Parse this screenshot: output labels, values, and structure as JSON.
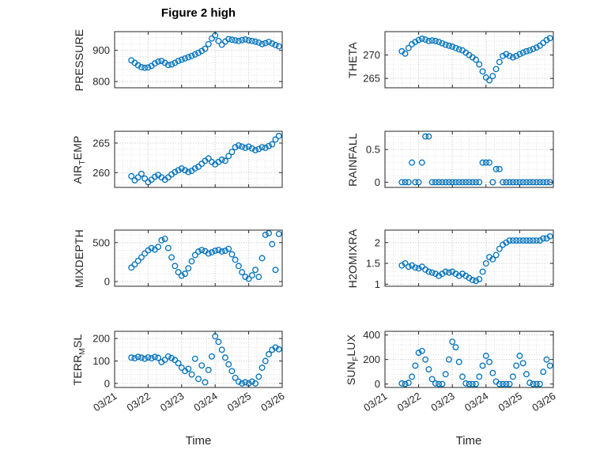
{
  "title": "Figure 2 high",
  "xlabel": "Time",
  "colors": {
    "accent": "#0072BD",
    "axis": "#262626",
    "grid_major": "#c8c8c8",
    "grid_minor": "#e0e0e0"
  },
  "x_axis": {
    "label": "Time",
    "lim": [
      0,
      5
    ],
    "ticks": [
      0,
      1,
      2,
      3,
      4,
      5
    ],
    "minor_step": 0.25,
    "tick_labels": [
      "03/21",
      "03/22",
      "03/23",
      "03/24",
      "03/25",
      "03/26"
    ]
  },
  "x": [
    0.5,
    0.6,
    0.7,
    0.8,
    0.9,
    1.0,
    1.1,
    1.2,
    1.3,
    1.4,
    1.5,
    1.6,
    1.7,
    1.8,
    1.9,
    2.0,
    2.1,
    2.2,
    2.3,
    2.4,
    2.5,
    2.6,
    2.7,
    2.8,
    2.9,
    3.0,
    3.1,
    3.2,
    3.3,
    3.4,
    3.5,
    3.6,
    3.7,
    3.8,
    3.9,
    4.0,
    4.1,
    4.2,
    4.3,
    4.4,
    4.5,
    4.6,
    4.7,
    4.8,
    4.9
  ],
  "chart_data": [
    {
      "type": "scatter",
      "name": "pressure",
      "ylabel": "PRESSURE",
      "ylabel_parts": [
        {
          "text": "PRESSURE"
        }
      ],
      "ylim": [
        780,
        960
      ],
      "yticks": [
        800,
        900
      ],
      "y": [
        868,
        860,
        852,
        846,
        844,
        845,
        850,
        858,
        864,
        866,
        860,
        853,
        855,
        860,
        866,
        870,
        874,
        878,
        882,
        887,
        892,
        898,
        905,
        920,
        938,
        948,
        930,
        918,
        928,
        936,
        934,
        932,
        930,
        933,
        935,
        932,
        930,
        928,
        925,
        920,
        923,
        927,
        922,
        917,
        913
      ]
    },
    {
      "type": "scatter",
      "name": "air-temp",
      "ylabel": "AIR_TEMP",
      "ylabel_parts": [
        {
          "text": "AIR"
        },
        {
          "sub": "T"
        },
        {
          "text": "EMP"
        }
      ],
      "ylim": [
        257.5,
        267
      ],
      "yticks": [
        260,
        265
      ],
      "y": [
        259.4,
        258.7,
        259.2,
        259.8,
        259.0,
        258.4,
        258.8,
        259.3,
        259.6,
        259.2,
        258.8,
        259.2,
        259.7,
        260.1,
        260.4,
        260.7,
        260.4,
        260.1,
        260.3,
        260.7,
        261.0,
        261.5,
        262.0,
        262.4,
        261.8,
        261.4,
        261.8,
        262.2,
        262.0,
        262.8,
        263.5,
        264.3,
        264.6,
        264.4,
        264.2,
        264.4,
        264.1,
        263.8,
        264.0,
        264.3,
        264.2,
        264.5,
        264.8,
        265.6,
        266.2
      ]
    },
    {
      "type": "scatter",
      "name": "mixdepth",
      "ylabel": "MIXDEPTH",
      "ylabel_parts": [
        {
          "text": "MIXDEPTH"
        }
      ],
      "ylim": [
        -60,
        660
      ],
      "yticks": [
        0,
        500
      ],
      "y": [
        180,
        220,
        265,
        310,
        360,
        400,
        430,
        410,
        445,
        530,
        548,
        430,
        310,
        200,
        120,
        75,
        100,
        170,
        260,
        340,
        385,
        405,
        390,
        360,
        375,
        395,
        405,
        385,
        395,
        420,
        350,
        280,
        200,
        120,
        60,
        35,
        80,
        150,
        60,
        300,
        600,
        620,
        480,
        150,
        610
      ]
    },
    {
      "type": "scatter",
      "name": "terr-msl",
      "ylabel": "TERR_MSL",
      "ylabel_parts": [
        {
          "text": "TERR"
        },
        {
          "sub": "M"
        },
        {
          "text": "SL"
        }
      ],
      "ylim": [
        -18,
        232
      ],
      "yticks": [
        0,
        100,
        200
      ],
      "y": [
        115,
        112,
        118,
        115,
        110,
        116,
        112,
        118,
        114,
        95,
        105,
        120,
        113,
        104,
        90,
        70,
        55,
        65,
        40,
        110,
        20,
        80,
        5,
        60,
        120,
        210,
        185,
        150,
        115,
        85,
        55,
        25,
        8,
        0,
        5,
        0,
        8,
        0,
        30,
        70,
        100,
        130,
        150,
        160,
        152
      ]
    },
    {
      "type": "scatter",
      "name": "theta",
      "ylabel": "THETA",
      "ylabel_parts": [
        {
          "text": "THETA"
        }
      ],
      "ylim": [
        263,
        275
      ],
      "yticks": [
        265,
        270
      ],
      "y": [
        270.8,
        270.3,
        271.5,
        272.3,
        272.8,
        273.2,
        273.5,
        273.3,
        273.0,
        273.1,
        273.0,
        272.8,
        272.5,
        272.2,
        272.0,
        271.8,
        271.5,
        271.2,
        271.0,
        270.5,
        270.0,
        269.5,
        269.0,
        268.0,
        266.5,
        265.2,
        264.6,
        265.5,
        267.0,
        268.5,
        269.8,
        270.2,
        269.8,
        269.5,
        269.8,
        270.2,
        270.5,
        270.8,
        271.0,
        271.3,
        271.6,
        272.0,
        272.6,
        273.2,
        273.6
      ]
    },
    {
      "type": "scatter",
      "name": "rainfall",
      "ylabel": "RAINFALL",
      "ylabel_parts": [
        {
          "text": "RAINFALL"
        }
      ],
      "ylim": [
        -0.08,
        0.78
      ],
      "yticks": [
        0,
        0.5
      ],
      "y": [
        0,
        0,
        0,
        0.3,
        0,
        0,
        0.3,
        0.7,
        0.7,
        0,
        0,
        0,
        0,
        0,
        0,
        0,
        0,
        0,
        0,
        0,
        0,
        0,
        0,
        0,
        0.3,
        0.3,
        0.3,
        0,
        0.2,
        0.2,
        0,
        0,
        0,
        0,
        0,
        0,
        0,
        0,
        0,
        0,
        0,
        0,
        0,
        0,
        0
      ]
    },
    {
      "type": "scatter",
      "name": "h2omixra",
      "ylabel": "H2OMIXRA",
      "ylabel_parts": [
        {
          "text": "H2OMIXRA"
        }
      ],
      "ylim": [
        0.95,
        2.3
      ],
      "yticks": [
        1,
        1.5,
        2
      ],
      "y": [
        1.45,
        1.5,
        1.42,
        1.45,
        1.4,
        1.38,
        1.42,
        1.35,
        1.3,
        1.28,
        1.25,
        1.2,
        1.25,
        1.3,
        1.28,
        1.3,
        1.25,
        1.2,
        1.25,
        1.2,
        1.15,
        1.1,
        1.08,
        1.12,
        1.3,
        1.5,
        1.65,
        1.6,
        1.7,
        1.85,
        1.95,
        2.0,
        2.05,
        2.05,
        2.05,
        2.05,
        2.05,
        2.05,
        2.05,
        2.05,
        2.05,
        2.05,
        2.1,
        2.1,
        2.15
      ]
    },
    {
      "type": "scatter",
      "name": "sun-flux",
      "ylabel": "SUN_FLUX",
      "ylabel_parts": [
        {
          "text": "SUN"
        },
        {
          "sub": "F"
        },
        {
          "text": "LUX"
        }
      ],
      "ylim": [
        -28,
        430
      ],
      "yticks": [
        0,
        200,
        400
      ],
      "y": [
        5,
        0,
        10,
        60,
        150,
        255,
        270,
        200,
        120,
        40,
        5,
        0,
        0,
        80,
        200,
        345,
        300,
        180,
        60,
        5,
        0,
        0,
        0,
        60,
        150,
        230,
        180,
        90,
        20,
        0,
        0,
        0,
        0,
        60,
        150,
        230,
        170,
        80,
        10,
        0,
        0,
        0,
        100,
        200,
        150
      ]
    }
  ]
}
